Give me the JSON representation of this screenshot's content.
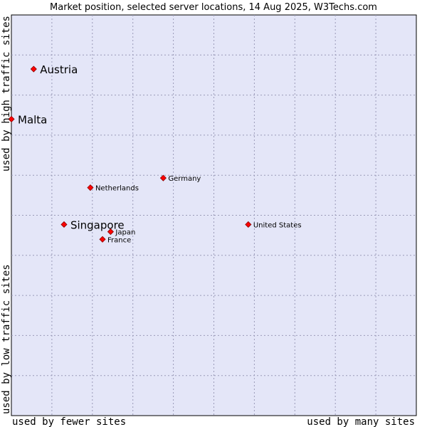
{
  "chart_data": {
    "type": "scatter",
    "title": "Market position, selected server locations, 14 Aug 2025, W3Techs.com",
    "xlabel_low": "used by fewer sites",
    "xlabel_high": "used by many sites",
    "ylabel_low": "used by low traffic sites",
    "ylabel_high": "used by high traffic sites",
    "xlim": [
      0,
      100
    ],
    "ylim": [
      0,
      100
    ],
    "grid": true,
    "colors": {
      "plot_bg": "#e4e6f8",
      "point": "#ff0000",
      "point_edge": "#880000",
      "grid": "#9a9ab8"
    },
    "points": [
      {
        "label": "Austria",
        "x": 5.5,
        "y": 86.5,
        "emphasis": true
      },
      {
        "label": "Malta",
        "x": 0.0,
        "y": 74.0,
        "emphasis": true
      },
      {
        "label": "Germany",
        "x": 37.5,
        "y": 59.3,
        "emphasis": false
      },
      {
        "label": "Netherlands",
        "x": 19.5,
        "y": 56.9,
        "emphasis": false
      },
      {
        "label": "Singapore",
        "x": 13.0,
        "y": 47.7,
        "emphasis": true
      },
      {
        "label": "United States",
        "x": 58.5,
        "y": 47.7,
        "emphasis": false
      },
      {
        "label": "Japan",
        "x": 24.5,
        "y": 45.9,
        "emphasis": false
      },
      {
        "label": "France",
        "x": 22.5,
        "y": 44.0,
        "emphasis": false
      }
    ]
  }
}
